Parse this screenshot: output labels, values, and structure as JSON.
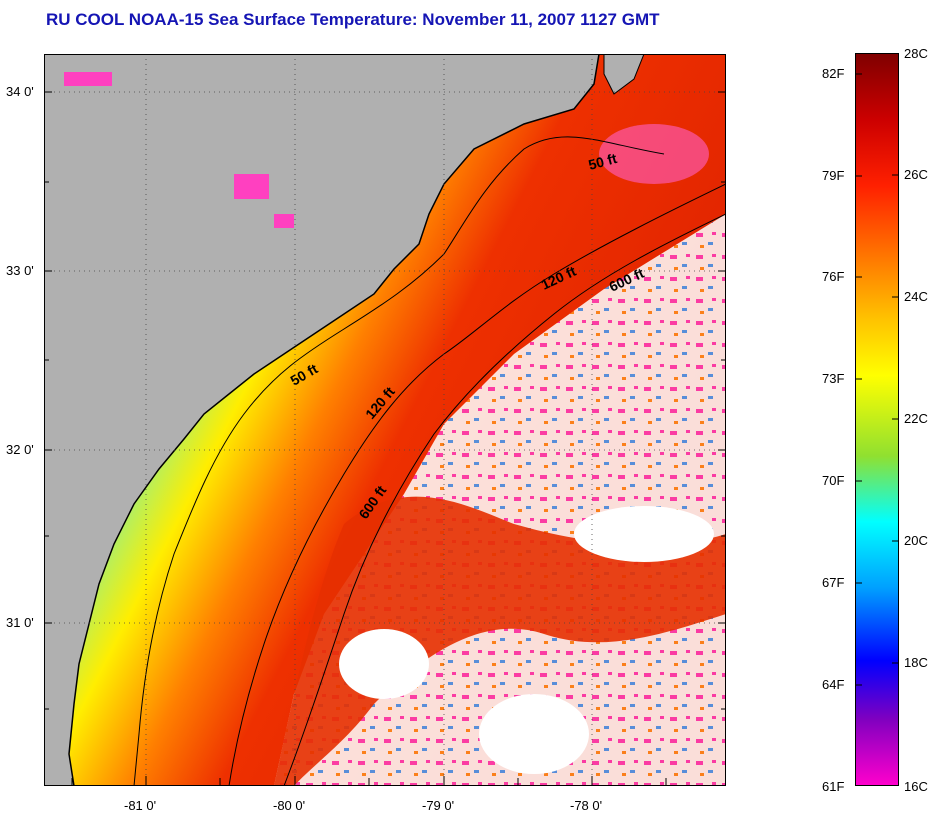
{
  "title": "RU COOL  NOAA-15  Sea Surface Temperature:  November 11, 2007 1127 GMT",
  "map": {
    "lat_ticks": [
      "34 0'",
      "33 0'",
      "32 0'",
      "31 0'"
    ],
    "lon_ticks": [
      "-81 0'",
      "-80 0'",
      "-79 0'",
      "-78 0'"
    ],
    "depth_contours": [
      {
        "label": "50 ft",
        "contour": "nearshore-north"
      },
      {
        "label": "120 ft",
        "contour": "mid-shelf-north"
      },
      {
        "label": "600 ft",
        "contour": "shelf-break-north"
      },
      {
        "label": "50 ft",
        "contour": "nearshore-south"
      },
      {
        "label": "120 ft",
        "contour": "mid-shelf-south"
      },
      {
        "label": "600 ft",
        "contour": "shelf-break-south"
      }
    ],
    "colors": {
      "land": "#b0b0b0",
      "cloud": "#ffffff",
      "coast": "#000000"
    }
  },
  "colorbar": {
    "celsius_labels": [
      "28C",
      "26C",
      "24C",
      "22C",
      "20C",
      "18C",
      "16C"
    ],
    "fahrenheit_labels": [
      "82F",
      "79F",
      "76F",
      "73F",
      "70F",
      "67F",
      "64F",
      "61F"
    ],
    "range_c": [
      16,
      28
    ],
    "gradient_colors": [
      "#800000",
      "#cc0000",
      "#ff2000",
      "#ff7000",
      "#ffc000",
      "#ffff00",
      "#90e030",
      "#00ffff",
      "#00a0ff",
      "#0000ff",
      "#8000c0",
      "#ff00cc"
    ]
  }
}
